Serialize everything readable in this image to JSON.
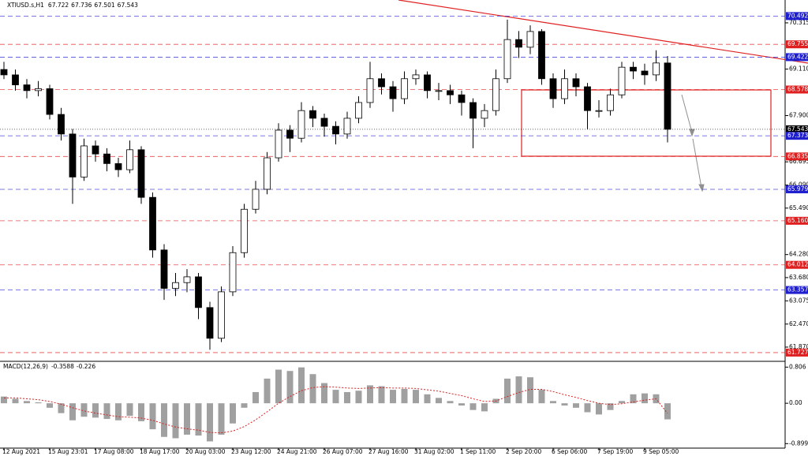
{
  "chart_data": [
    {
      "type": "candlestick",
      "title": "XTIUSD.s,H1",
      "header_ohlc": [
        67.722,
        67.736,
        67.501,
        67.543
      ],
      "categories": [
        "12 Aug 2021",
        null,
        null,
        null,
        "15 Aug 23:01",
        null,
        null,
        null,
        "17 Aug 08:00",
        null,
        null,
        null,
        "18 Aug 17:00",
        null,
        null,
        null,
        "20 Aug 03:00",
        null,
        null,
        null,
        "23 Aug 12:00",
        null,
        null,
        null,
        "24 Aug 21:00",
        null,
        null,
        null,
        "26 Aug 07:00",
        null,
        null,
        null,
        "27 Aug 16:00",
        null,
        null,
        null,
        "31 Aug 02:00",
        null,
        null,
        null,
        "1 Sep 11:00",
        null,
        null,
        null,
        "2 Sep 20:00",
        null,
        null,
        null,
        "6 Sep 06:00",
        null,
        null,
        null,
        "7 Sep 19:00",
        null,
        null,
        null,
        "9 Sep 05:00",
        null,
        null
      ],
      "open": [
        69.1,
        68.96,
        68.7,
        68.55,
        68.6,
        67.93,
        67.42,
        66.3,
        67.11,
        66.9,
        66.65,
        66.49,
        67.01,
        65.77,
        64.4,
        63.4,
        63.55,
        63.7,
        62.9,
        62.1,
        63.31,
        64.33,
        65.46,
        65.98,
        66.8,
        67.52,
        67.31,
        68.03,
        67.83,
        67.62,
        67.42,
        67.83,
        68.24,
        68.86,
        68.65,
        68.34,
        68.86,
        68.96,
        68.55,
        68.55,
        68.44,
        68.24,
        67.83,
        68.03,
        68.86,
        69.88,
        69.68,
        70.09,
        68.86,
        68.34,
        68.86,
        68.65,
        68.03,
        68.03,
        68.44,
        69.16,
        69.06,
        68.96,
        69.27
      ],
      "high": [
        69.3,
        69.1,
        68.85,
        68.8,
        68.7,
        68.1,
        67.55,
        67.3,
        67.25,
        67.05,
        66.8,
        67.25,
        67.1,
        65.9,
        64.55,
        63.8,
        63.9,
        63.8,
        63.05,
        63.45,
        64.5,
        65.6,
        66.2,
        66.95,
        67.7,
        67.65,
        68.25,
        68.15,
        67.95,
        67.75,
        68.0,
        68.4,
        69.3,
        69.0,
        68.8,
        69.05,
        69.1,
        69.05,
        68.75,
        68.7,
        68.55,
        68.35,
        68.2,
        69.1,
        70.4,
        70.1,
        70.25,
        70.15,
        69.0,
        69.1,
        69.0,
        68.75,
        68.3,
        68.6,
        69.3,
        69.3,
        69.25,
        69.6,
        69.45
      ],
      "low": [
        68.85,
        68.55,
        68.35,
        68.4,
        67.8,
        67.25,
        65.6,
        66.2,
        66.7,
        66.45,
        66.3,
        66.4,
        65.6,
        64.2,
        63.1,
        63.2,
        63.3,
        62.6,
        61.8,
        62.0,
        63.2,
        64.2,
        65.35,
        65.85,
        66.7,
        66.95,
        67.2,
        67.6,
        67.35,
        67.15,
        67.3,
        67.7,
        68.1,
        68.45,
        68.0,
        68.2,
        68.7,
        68.35,
        68.3,
        68.2,
        67.9,
        67.05,
        67.6,
        67.9,
        68.75,
        69.4,
        69.5,
        68.7,
        68.1,
        68.2,
        68.4,
        67.55,
        67.85,
        67.9,
        68.35,
        68.85,
        68.7,
        68.8,
        67.2
      ],
      "close": [
        68.96,
        68.7,
        68.55,
        68.6,
        67.93,
        67.42,
        66.3,
        67.11,
        66.9,
        66.65,
        66.49,
        67.01,
        65.77,
        64.4,
        63.4,
        63.55,
        63.7,
        62.9,
        62.1,
        63.31,
        64.33,
        65.46,
        65.98,
        66.8,
        67.52,
        67.31,
        68.03,
        67.83,
        67.62,
        67.42,
        67.83,
        68.24,
        68.86,
        68.65,
        68.34,
        68.86,
        68.96,
        68.55,
        68.55,
        68.44,
        68.24,
        67.83,
        68.03,
        68.86,
        69.88,
        69.68,
        70.09,
        68.86,
        68.34,
        68.86,
        68.65,
        68.03,
        68.03,
        68.44,
        69.16,
        69.06,
        68.96,
        69.27,
        67.543
      ],
      "ylim": [
        61.52,
        70.91
      ],
      "yticks": [
        70.315,
        {
          "value": 69.11,
          "label": "69.110"
        },
        {
          "value": 67.9,
          "label": "67.900"
        },
        66.695,
        {
          "value": 66.09,
          "label": "66.090"
        },
        {
          "value": 65.49,
          "label": "65.490"
        },
        {
          "value": 64.28,
          "label": "64.280"
        },
        {
          "value": 63.68,
          "label": "63.680"
        },
        63.075,
        {
          "value": 62.47,
          "label": "62.470"
        },
        {
          "value": 61.87,
          "label": "61.870"
        }
      ],
      "levels": [
        {
          "value": 70.492,
          "color": "#1f1fd0"
        },
        {
          "value": 69.755,
          "color": "#e02020"
        },
        {
          "value": 69.422,
          "color": "#1f1fd0"
        },
        {
          "value": 68.578,
          "color": "#e02020"
        },
        {
          "value": 67.543,
          "color": "#000000"
        },
        {
          "value": 67.373,
          "color": "#1f1fd0"
        },
        {
          "value": 66.835,
          "color": "#e02020"
        },
        {
          "value": 65.979,
          "color": "#1f1fd0"
        },
        {
          "value": 65.16,
          "label": "65.160",
          "color": "#e02020"
        },
        {
          "value": 64.012,
          "color": "#e02020"
        },
        {
          "value": 63.357,
          "color": "#1f1fd0"
        },
        {
          "value": 61.727,
          "color": "#e02020"
        }
      ]
    },
    {
      "type": "bar",
      "title": "MACD(12,26,9)",
      "series": [
        {
          "type": "bar",
          "color": "#a0a0a0",
          "values": [
            0.15,
            0.1,
            0.05,
            0.02,
            -0.1,
            -0.22,
            -0.38,
            -0.3,
            -0.32,
            -0.35,
            -0.38,
            -0.28,
            -0.4,
            -0.58,
            -0.75,
            -0.78,
            -0.7,
            -0.72,
            -0.85,
            -0.7,
            -0.45,
            -0.1,
            0.25,
            0.55,
            0.75,
            0.72,
            0.8,
            0.65,
            0.45,
            0.3,
            0.25,
            0.28,
            0.4,
            0.38,
            0.3,
            0.32,
            0.3,
            0.2,
            0.12,
            0.05,
            -0.05,
            -0.15,
            -0.18,
            0.1,
            0.55,
            0.6,
            0.58,
            0.3,
            0.05,
            -0.05,
            -0.1,
            -0.2,
            -0.25,
            -0.15,
            0.05,
            0.2,
            0.22,
            0.2,
            -0.3588
          ]
        },
        {
          "type": "line",
          "color": "#e02020",
          "values": [
            0.12,
            0.12,
            0.1,
            0.08,
            0.04,
            -0.02,
            -0.1,
            -0.17,
            -0.22,
            -0.26,
            -0.3,
            -0.31,
            -0.33,
            -0.38,
            -0.46,
            -0.53,
            -0.57,
            -0.6,
            -0.65,
            -0.66,
            -0.62,
            -0.52,
            -0.37,
            -0.19,
            0.0,
            0.15,
            0.28,
            0.35,
            0.37,
            0.36,
            0.34,
            0.33,
            0.34,
            0.35,
            0.34,
            0.34,
            0.33,
            0.3,
            0.27,
            0.22,
            0.17,
            0.1,
            0.04,
            0.05,
            0.15,
            0.24,
            0.31,
            0.31,
            0.26,
            0.19,
            0.13,
            0.06,
            0.0,
            -0.03,
            -0.01,
            0.03,
            0.07,
            0.1,
            -0.226
          ]
        }
      ],
      "ylim": [
        -1.0,
        0.9
      ],
      "yticks": [
        0.806,
        {
          "value": 0,
          "label": "0.00"
        },
        -0.8998
      ]
    }
  ]
}
